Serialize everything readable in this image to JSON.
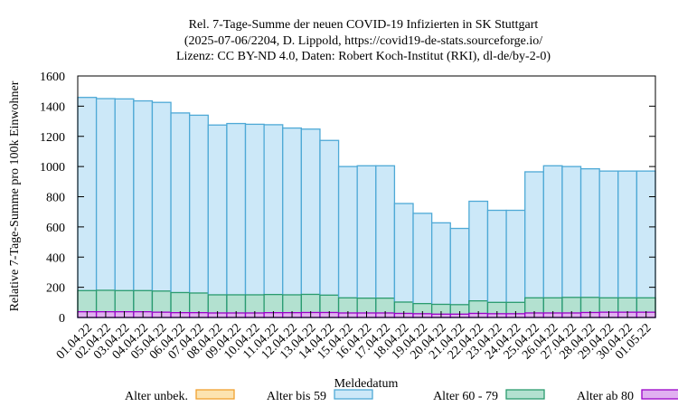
{
  "chart_data": {
    "type": "bar",
    "stacked": true,
    "title": [
      "Rel. 7-Tage-Summe der neuen COVID-19 Infizierten in SK Stuttgart",
      "(2025-07-06/2204, D. Lippold, https://covid19-de-stats.sourceforge.io/",
      "Lizenz: CC BY-ND 4.0, Daten: Robert Koch-Institut (RKI), dl-de/by-2-0)"
    ],
    "xlabel": "Meldedatum",
    "ylabel": "Relative 7-Tage-Summe pro 100k Einwohner",
    "ylim": [
      0,
      1600
    ],
    "yticks": [
      0,
      200,
      400,
      600,
      800,
      1000,
      1200,
      1400,
      1600
    ],
    "grid": false,
    "legend_position": "bottom",
    "categories": [
      "01.04.22",
      "02.04.22",
      "03.04.22",
      "04.04.22",
      "05.04.22",
      "06.04.22",
      "07.04.22",
      "08.04.22",
      "09.04.22",
      "10.04.22",
      "11.04.22",
      "12.04.22",
      "13.04.22",
      "14.04.22",
      "15.04.22",
      "16.04.22",
      "17.04.22",
      "18.04.22",
      "19.04.22",
      "20.04.22",
      "21.04.22",
      "22.04.22",
      "23.04.22",
      "24.04.22",
      "25.04.22",
      "26.04.22",
      "27.04.22",
      "28.04.22",
      "29.04.22",
      "30.04.22",
      "01.05.22"
    ],
    "series": [
      {
        "name": "Alter ab 80",
        "fill": "#e0b0f0",
        "stroke": "#9a00c8",
        "values": [
          38,
          38,
          38,
          38,
          35,
          32,
          32,
          30,
          30,
          30,
          32,
          32,
          33,
          33,
          30,
          30,
          30,
          27,
          25,
          22,
          22,
          27,
          25,
          25,
          30,
          30,
          30,
          33,
          35,
          35,
          35
        ]
      },
      {
        "name": "Alter 60 - 79",
        "fill": "#b3e1d0",
        "stroke": "#2a9b6e",
        "values": [
          140,
          142,
          140,
          140,
          140,
          133,
          130,
          120,
          120,
          120,
          120,
          118,
          120,
          115,
          100,
          98,
          98,
          75,
          67,
          65,
          63,
          83,
          75,
          75,
          100,
          100,
          103,
          100,
          95,
          95,
          95
        ]
      },
      {
        "name": "Alter bis 59",
        "fill": "#cce8f8",
        "stroke": "#4ea9d6",
        "values": [
          1280,
          1270,
          1270,
          1257,
          1250,
          1190,
          1178,
          1125,
          1135,
          1130,
          1125,
          1105,
          1095,
          1025,
          870,
          877,
          877,
          653,
          598,
          540,
          505,
          660,
          610,
          610,
          835,
          875,
          867,
          852,
          840,
          840,
          840
        ]
      },
      {
        "name": "Alter unbek.",
        "fill": "#fce3b0",
        "stroke": "#f0a030",
        "values": [
          0,
          0,
          0,
          0,
          0,
          0,
          0,
          0,
          0,
          0,
          0,
          0,
          0,
          0,
          0,
          0,
          0,
          0,
          0,
          0,
          0,
          0,
          0,
          0,
          0,
          0,
          0,
          0,
          0,
          0,
          0
        ]
      }
    ]
  }
}
